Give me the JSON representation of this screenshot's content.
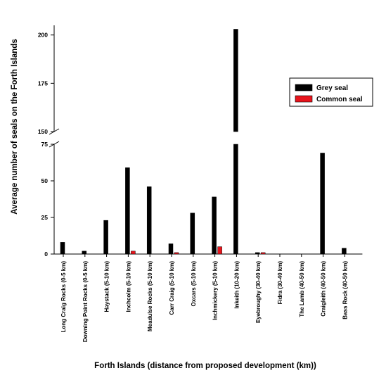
{
  "chart_data": {
    "type": "bar",
    "title": "",
    "xlabel": "Forth Islands (distance from proposed development (km))",
    "ylabel": "Average number of seals on the Forth Islands",
    "categories": [
      "Long Craig Rocks (0-5 km)",
      "Downing Point Rocks (0-5 km)",
      "Haystack (5-10 km)",
      "Inchcolm (5-10 km)",
      "Meadulse Rocks (5-10 km)",
      "Carr Craig (5-10 km)",
      "Oxcars (5-10 km)",
      "Inchmickery (5-10 km)",
      "Inkeith (10-20 km)",
      "Eyebroughy (30-40 km)",
      "Fidra (30-40 km)",
      "The Lamb (40-50 km)",
      "Craigleith (40-50 km)",
      "Bass Rock (40-50 km)"
    ],
    "series": [
      {
        "name": "Grey seal",
        "color": "#000000",
        "values": [
          8,
          2,
          23,
          59,
          46,
          7,
          28,
          39,
          203,
          1,
          0,
          0,
          69,
          4
        ]
      },
      {
        "name": "Common seal",
        "color": "#e8141c",
        "values": [
          0,
          0,
          0,
          2,
          0,
          1,
          0,
          5,
          0,
          1,
          0,
          0,
          0,
          0
        ]
      }
    ],
    "y_axis": {
      "broken": true,
      "lower_range": [
        0,
        75
      ],
      "upper_range": [
        150,
        205
      ],
      "ticks_lower": [
        "0",
        "25",
        "50",
        "75"
      ],
      "ticks_upper": [
        "150",
        "175",
        "200"
      ]
    },
    "legend_position": "top-right",
    "grid": false
  }
}
